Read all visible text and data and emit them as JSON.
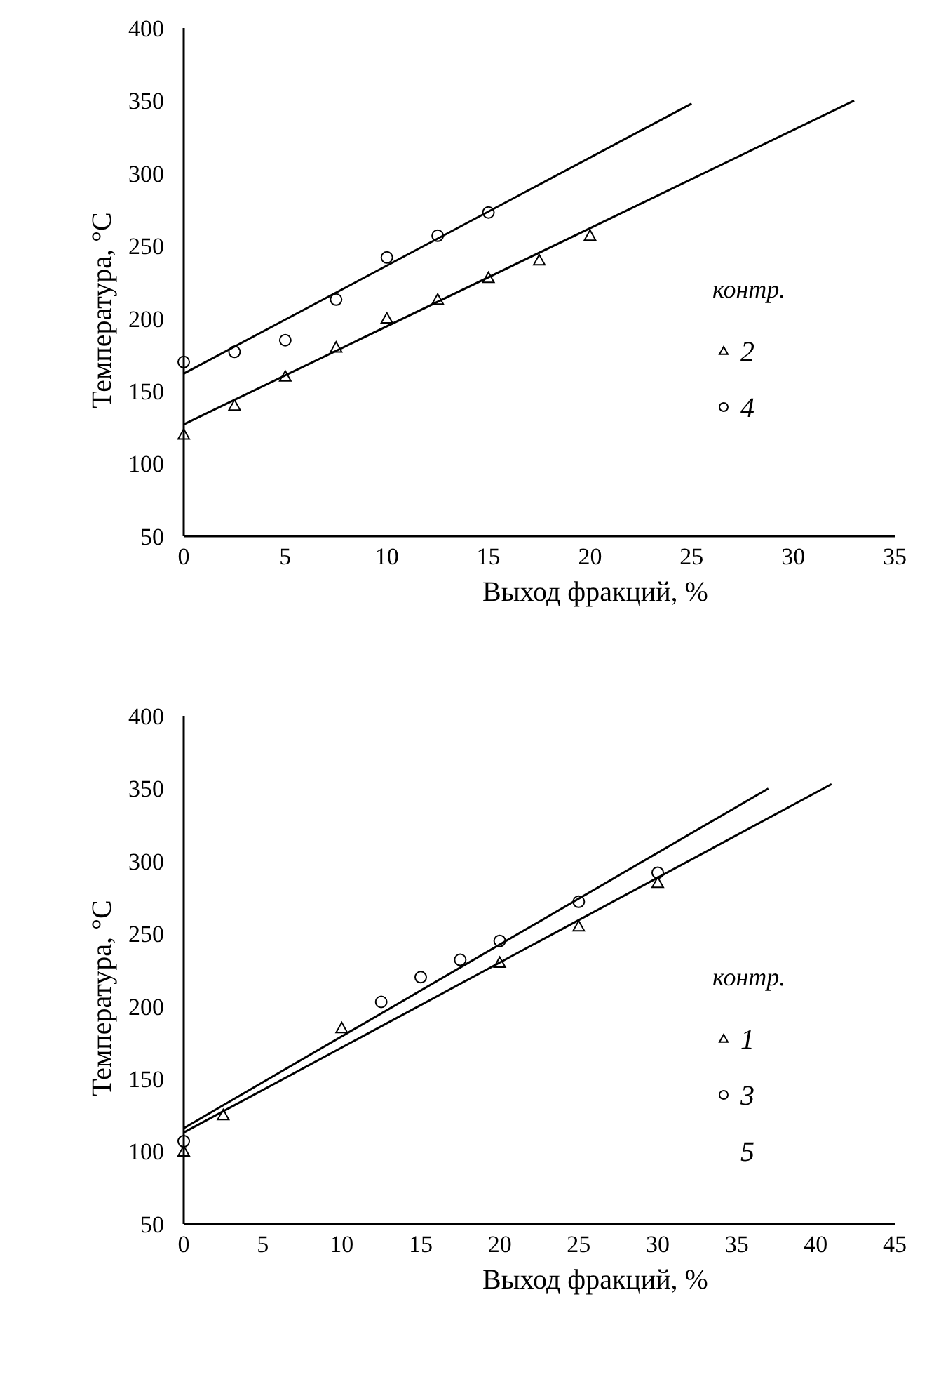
{
  "chart_data": [
    {
      "type": "scatter",
      "xlabel": "Выход фракций, %",
      "ylabel": "Температура, °С",
      "legend_title": "контр.",
      "legend": "right",
      "xlim": [
        0,
        35
      ],
      "xticks": [
        0,
        5,
        10,
        15,
        20,
        25,
        30,
        35
      ],
      "ylim": [
        50,
        400
      ],
      "yticks": [
        50,
        100,
        150,
        200,
        250,
        300,
        350,
        400
      ],
      "grid": false,
      "series": [
        {
          "name": "2",
          "color": "#000000",
          "marker": "triangle",
          "x": [
            0,
            2.5,
            5,
            7.5,
            10,
            12.5,
            15,
            17.5,
            20
          ],
          "values": [
            120,
            140,
            160,
            180,
            200,
            213,
            228,
            240,
            257
          ]
        },
        {
          "name": "4",
          "color": "#000000",
          "marker": "circle",
          "x": [
            0,
            2.5,
            5,
            7.5,
            10,
            12.5,
            15
          ],
          "values": [
            170,
            177,
            185,
            213,
            242,
            257,
            273
          ]
        },
        {
          "type": "line",
          "color": "#000000",
          "x": [
            0,
            25
          ],
          "values": [
            162,
            348
          ]
        },
        {
          "type": "line",
          "color": "#000000",
          "x": [
            0,
            33
          ],
          "values": [
            127,
            350
          ]
        }
      ]
    },
    {
      "type": "scatter",
      "xlabel": "Выход фракций, %",
      "ylabel": "Температура, °С",
      "legend_title": "контр.",
      "legend": "right",
      "xlim": [
        0,
        45
      ],
      "xticks": [
        0,
        5,
        10,
        15,
        20,
        25,
        30,
        35,
        40,
        45
      ],
      "ylim": [
        50,
        400
      ],
      "yticks": [
        50,
        100,
        150,
        200,
        250,
        300,
        350,
        400
      ],
      "grid": false,
      "series": [
        {
          "name": "1",
          "color": "#000000",
          "marker": "triangle",
          "x": [
            0,
            2.5,
            10,
            20,
            25,
            30
          ],
          "values": [
            100,
            125,
            185,
            230,
            255,
            285
          ]
        },
        {
          "name": "3",
          "color": "#000000",
          "marker": "circle",
          "x": [
            0,
            12.5,
            15,
            17.5,
            20,
            25,
            30
          ],
          "values": [
            107,
            203,
            220,
            232,
            245,
            272,
            292
          ]
        },
        {
          "name": "5",
          "color": "#000000",
          "marker": "none"
        },
        {
          "type": "line",
          "color": "#000000",
          "x": [
            0,
            37
          ],
          "values": [
            116,
            350
          ]
        },
        {
          "type": "line",
          "color": "#000000",
          "x": [
            0,
            41
          ],
          "values": [
            113,
            353
          ]
        }
      ]
    }
  ]
}
